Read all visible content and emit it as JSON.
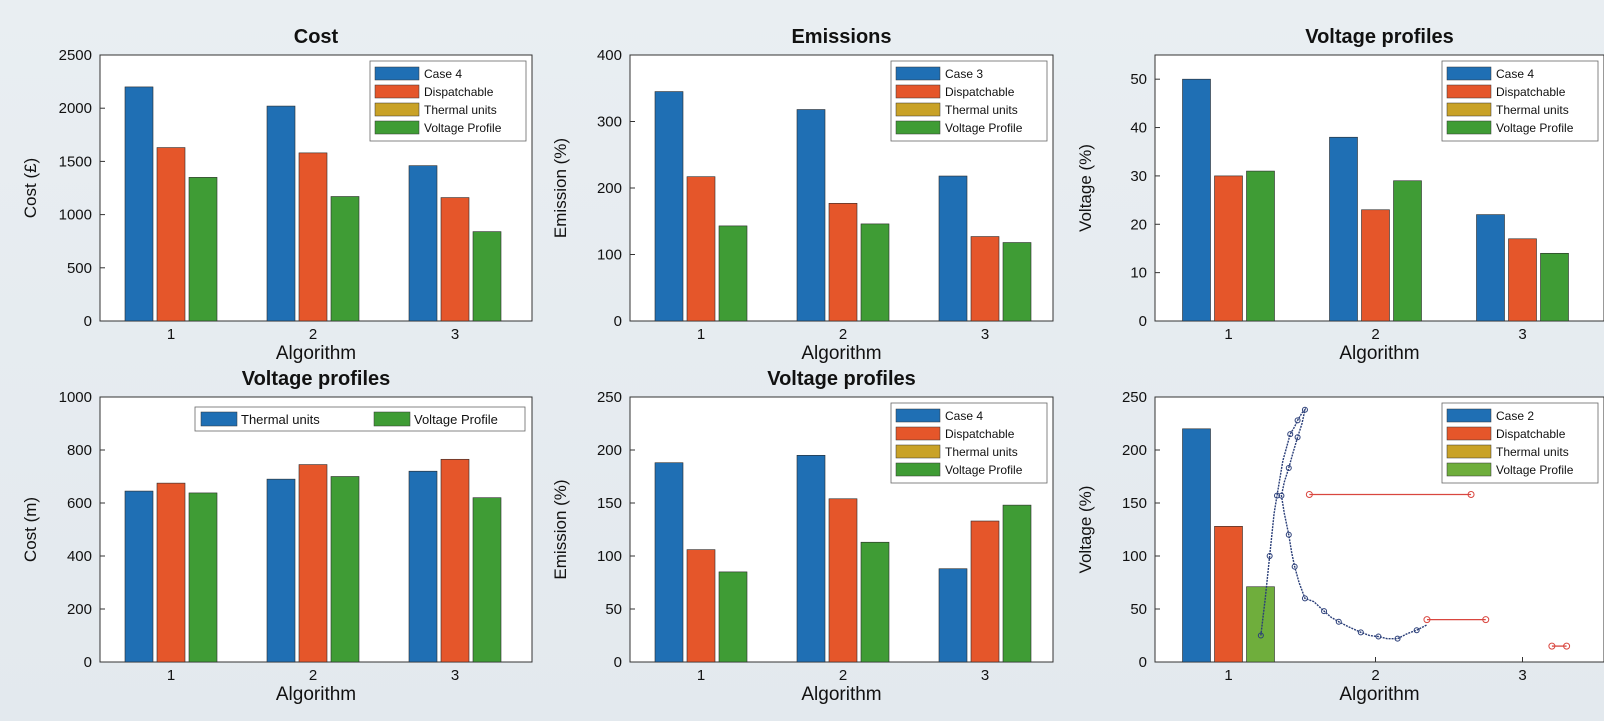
{
  "figure": {
    "cropped_title": ""
  },
  "chart_data": [
    {
      "type": "bar",
      "title": "Cost",
      "xlabel": "Algorithm",
      "ylabel": "Cost (£)",
      "ylim": [
        0,
        2500
      ],
      "yticks": [
        0,
        500,
        1000,
        1500,
        2000,
        2500
      ],
      "categories": [
        "1",
        "2",
        "3"
      ],
      "legend_position": "top-right",
      "series": [
        {
          "name": "Case 4",
          "color": "#1f6fb4",
          "values": [
            2200,
            2020,
            1460
          ]
        },
        {
          "name": "Dispatchable",
          "color": "#e5562a",
          "values": [
            1630,
            1580,
            1160
          ]
        },
        {
          "name": "Thermal units",
          "color": "#c9a227",
          "values": [
            null,
            null,
            null
          ]
        },
        {
          "name": "Voltage Profile",
          "color": "#3f9c35",
          "values": [
            1350,
            1170,
            840
          ]
        }
      ]
    },
    {
      "type": "bar",
      "title": "Emissions",
      "xlabel": "Algorithm",
      "ylabel": "Emission (%)",
      "ylim": [
        0,
        400
      ],
      "yticks": [
        0,
        100,
        200,
        300,
        400
      ],
      "categories": [
        "1",
        "2",
        "3"
      ],
      "legend_position": "top-right",
      "series": [
        {
          "name": "Case 3",
          "color": "#1f6fb4",
          "values": [
            345,
            318,
            218
          ]
        },
        {
          "name": "Dispatchable",
          "color": "#e5562a",
          "values": [
            217,
            177,
            127
          ]
        },
        {
          "name": "Thermal units",
          "color": "#c9a227",
          "values": [
            null,
            null,
            null
          ]
        },
        {
          "name": "Voltage Profile",
          "color": "#3f9c35",
          "values": [
            143,
            146,
            118
          ]
        }
      ]
    },
    {
      "type": "bar",
      "title": "Voltage profiles",
      "xlabel": "Algorithm",
      "ylabel": "Voltage (%)",
      "ylim": [
        0,
        55
      ],
      "yticks": [
        0,
        10,
        20,
        30,
        40,
        50
      ],
      "categories": [
        "1",
        "2",
        "3"
      ],
      "legend_position": "top-right",
      "series": [
        {
          "name": "Case 4",
          "color": "#1f6fb4",
          "values": [
            50,
            38,
            22
          ]
        },
        {
          "name": "Dispatchable",
          "color": "#e5562a",
          "values": [
            30,
            23,
            17
          ]
        },
        {
          "name": "Thermal units",
          "color": "#c9a227",
          "values": [
            null,
            null,
            null
          ]
        },
        {
          "name": "Voltage Profile",
          "color": "#3f9c35",
          "values": [
            31,
            29,
            14
          ]
        }
      ]
    },
    {
      "type": "bar",
      "title": "Voltage profiles",
      "xlabel": "Algorithm",
      "ylabel": "Cost (m)",
      "ylim": [
        0,
        1000
      ],
      "yticks": [
        0,
        200,
        400,
        600,
        800,
        1000
      ],
      "categories": [
        "1",
        "2",
        "3"
      ],
      "legend_position": "top-right",
      "series": [
        {
          "name": "Thermal units",
          "color": "#1f6fb4",
          "values": [
            645,
            690,
            720
          ]
        },
        {
          "name": "",
          "color": "#e5562a",
          "values": [
            675,
            745,
            765
          ]
        },
        {
          "name": "Voltage Profile",
          "color": "#3f9c35",
          "values": [
            638,
            700,
            620
          ]
        }
      ]
    },
    {
      "type": "bar",
      "title": "Voltage profiles",
      "xlabel": "Algorithm",
      "ylabel": "Emission (%)",
      "ylim": [
        0,
        250
      ],
      "yticks": [
        0,
        50,
        100,
        150,
        200,
        250
      ],
      "categories": [
        "1",
        "2",
        "3"
      ],
      "legend_position": "top-right",
      "series": [
        {
          "name": "Case 4",
          "color": "#1f6fb4",
          "values": [
            188,
            195,
            88
          ]
        },
        {
          "name": "Dispatchable",
          "color": "#e5562a",
          "values": [
            106,
            154,
            133
          ]
        },
        {
          "name": "Thermal units",
          "color": "#c9a227",
          "values": [
            null,
            null,
            null
          ]
        },
        {
          "name": "Voltage Profile",
          "color": "#3f9c35",
          "values": [
            85,
            113,
            148
          ]
        }
      ]
    },
    {
      "type": "bar",
      "title": "",
      "xlabel": "Algorithm",
      "ylabel": "Voltage (%)",
      "ylim": [
        0,
        250
      ],
      "yticks": [
        0,
        50,
        100,
        150,
        200,
        250
      ],
      "categories": [
        "1",
        "2",
        "3"
      ],
      "legend_position": "top-right",
      "series": [
        {
          "name": "Case 2",
          "color": "#1f6fb4",
          "values": [
            220,
            null,
            null
          ]
        },
        {
          "name": "Dispatchable",
          "color": "#e5562a",
          "values": [
            128,
            null,
            null
          ]
        },
        {
          "name": "Thermal units",
          "color": "#c9a227",
          "values": [
            null,
            null,
            null
          ]
        },
        {
          "name": "Voltage Profile",
          "color": "#6fae3c",
          "values": [
            71,
            null,
            null
          ]
        }
      ],
      "overlay_line": {
        "color": "#2a3e78",
        "x": [
          1.22,
          1.25,
          1.28,
          1.31,
          1.33,
          1.37,
          1.42,
          1.45,
          1.47,
          1.5,
          1.52,
          1.5,
          1.47,
          1.44,
          1.41,
          1.38,
          1.36,
          1.38,
          1.41,
          1.43,
          1.45,
          1.48,
          1.52,
          1.58,
          1.65,
          1.7,
          1.75,
          1.82,
          1.9,
          1.96,
          2.02,
          2.08,
          2.15,
          2.22,
          2.28,
          2.35
        ],
        "y": [
          25,
          60,
          100,
          140,
          157,
          190,
          215,
          222,
          228,
          235,
          238,
          225,
          212,
          198,
          183,
          170,
          157,
          140,
          120,
          103,
          90,
          75,
          60,
          57,
          48,
          42,
          38,
          33,
          28,
          25,
          24,
          22,
          22,
          27,
          30,
          35
        ]
      },
      "overlay_red": {
        "color": "#d9463f",
        "segments": [
          {
            "x": [
              1.55,
              2.65
            ],
            "y": [
              158,
              158
            ]
          },
          {
            "x": [
              2.35,
              2.75
            ],
            "y": [
              40,
              40
            ]
          },
          {
            "x": [
              3.2,
              3.3
            ],
            "y": [
              15,
              15
            ]
          }
        ]
      }
    }
  ]
}
